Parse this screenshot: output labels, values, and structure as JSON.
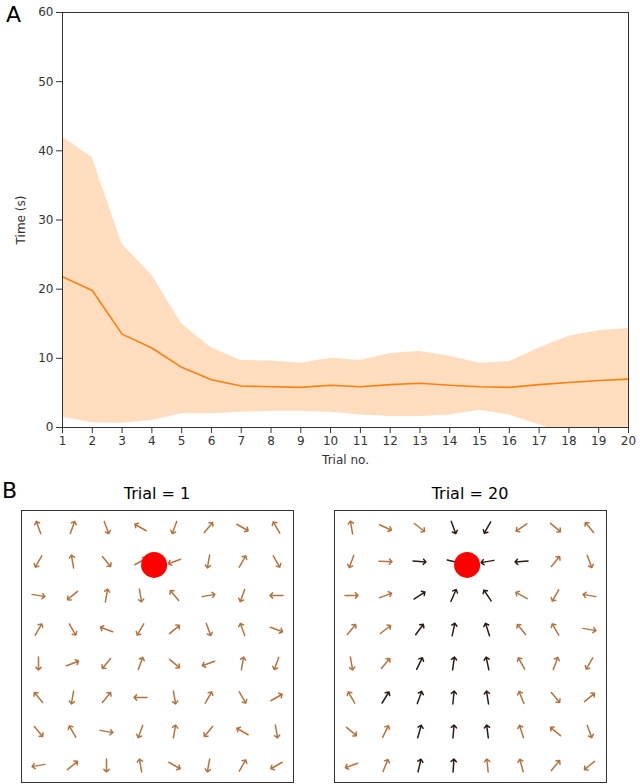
{
  "chart_data": [
    {
      "type": "line",
      "panel": "A",
      "x_label": "Trial no.",
      "y_label": "Time (s)",
      "x": [
        1,
        2,
        3,
        4,
        5,
        6,
        7,
        8,
        9,
        10,
        11,
        12,
        13,
        14,
        15,
        16,
        17,
        18,
        19,
        20
      ],
      "values": [
        21.8,
        19.8,
        13.5,
        11.5,
        8.7,
        6.9,
        6.0,
        5.9,
        5.8,
        6.1,
        5.9,
        6.2,
        6.4,
        6.1,
        5.9,
        5.8,
        6.2,
        6.5,
        6.8,
        7.0
      ],
      "lower": [
        1.5,
        0.7,
        0.6,
        1.0,
        2.0,
        2.0,
        2.2,
        2.3,
        2.3,
        2.2,
        1.8,
        1.6,
        1.6,
        1.8,
        2.5,
        1.8,
        0.4,
        -1.0,
        -0.5,
        -0.2
      ],
      "upper": [
        42,
        39,
        26.5,
        22,
        15,
        11.5,
        9.7,
        9.6,
        9.3,
        10,
        9.7,
        10.7,
        11,
        10.3,
        9.3,
        9.5,
        11.5,
        13.2,
        14,
        14.3
      ],
      "color": "#ff7f0e",
      "band_color": "#ffd1a8",
      "xlim": [
        1,
        20
      ],
      "xticks": [
        1,
        2,
        3,
        4,
        5,
        6,
        7,
        8,
        9,
        10,
        11,
        12,
        13,
        14,
        15,
        16,
        17,
        18,
        19,
        20
      ],
      "ylim": [
        0,
        60
      ],
      "yticks": [
        0,
        10,
        20,
        30,
        40,
        50,
        60
      ],
      "grid": false
    },
    {
      "type": "vector",
      "panel": "B",
      "title": "Trial = 1",
      "tick_labels": false,
      "xlim": [
        0,
        8
      ],
      "ylim": [
        0,
        8
      ],
      "x": [
        0.5,
        1.5,
        2.5,
        3.5,
        4.5,
        5.5,
        6.5,
        7.5,
        0.5,
        1.5,
        2.5,
        3.5,
        4.5,
        5.5,
        6.5,
        7.5,
        0.5,
        1.5,
        2.5,
        3.5,
        4.5,
        5.5,
        6.5,
        7.5,
        0.5,
        1.5,
        2.5,
        3.5,
        4.5,
        5.5,
        6.5,
        7.5,
        0.5,
        1.5,
        2.5,
        3.5,
        4.5,
        5.5,
        6.5,
        7.5,
        0.5,
        1.5,
        2.5,
        3.5,
        4.5,
        5.5,
        6.5,
        7.5,
        0.5,
        1.5,
        2.5,
        3.5,
        4.5,
        5.5,
        6.5,
        7.5,
        0.5,
        1.5,
        2.5,
        3.5,
        4.5,
        5.5,
        6.5,
        7.5
      ],
      "y": [
        7.5,
        7.5,
        7.5,
        7.5,
        7.5,
        7.5,
        7.5,
        7.5,
        6.5,
        6.5,
        6.5,
        6.5,
        6.5,
        6.5,
        6.5,
        6.5,
        5.5,
        5.5,
        5.5,
        5.5,
        5.5,
        5.5,
        5.5,
        5.5,
        4.5,
        4.5,
        4.5,
        4.5,
        4.5,
        4.5,
        4.5,
        4.5,
        3.5,
        3.5,
        3.5,
        3.5,
        3.5,
        3.5,
        3.5,
        3.5,
        2.5,
        2.5,
        2.5,
        2.5,
        2.5,
        2.5,
        2.5,
        2.5,
        1.5,
        1.5,
        1.5,
        1.5,
        1.5,
        1.5,
        1.5,
        1.5,
        0.5,
        0.5,
        0.5,
        0.5,
        0.5,
        0.5,
        0.5,
        0.5
      ],
      "directions": [
        340,
        20,
        160,
        300,
        200,
        40,
        120,
        330,
        210,
        350,
        140,
        60,
        250,
        190,
        30,
        150,
        100,
        230,
        10,
        170,
        320,
        80,
        200,
        270,
        30,
        150,
        290,
        210,
        50,
        160,
        340,
        110,
        180,
        70,
        220,
        20,
        130,
        250,
        10,
        200,
        320,
        190,
        40,
        270,
        170,
        30,
        150,
        60,
        140,
        330,
        100,
        200,
        10,
        220,
        300,
        170,
        260,
        50,
        180,
        350,
        120,
        190,
        30,
        240
      ],
      "color": "#b5733f",
      "goal": {
        "x": 3.9,
        "y": 6.4,
        "color": "#ff0000"
      }
    },
    {
      "type": "vector",
      "panel": "B",
      "title": "Trial = 20",
      "tick_labels": false,
      "xlim": [
        0,
        8
      ],
      "ylim": [
        0,
        8
      ],
      "x": [
        0.5,
        1.5,
        2.5,
        3.5,
        4.5,
        5.5,
        6.5,
        7.5,
        0.5,
        1.5,
        2.5,
        3.5,
        4.5,
        5.5,
        6.5,
        7.5,
        0.5,
        1.5,
        2.5,
        3.5,
        4.5,
        5.5,
        6.5,
        7.5,
        0.5,
        1.5,
        2.5,
        3.5,
        4.5,
        5.5,
        6.5,
        7.5,
        0.5,
        1.5,
        2.5,
        3.5,
        4.5,
        5.5,
        6.5,
        7.5,
        0.5,
        1.5,
        2.5,
        3.5,
        4.5,
        5.5,
        6.5,
        7.5,
        0.5,
        1.5,
        2.5,
        3.5,
        4.5,
        5.5,
        6.5,
        7.5,
        0.5,
        1.5,
        2.5,
        3.5,
        4.5,
        5.5,
        6.5,
        7.5
      ],
      "y": [
        7.5,
        7.5,
        7.5,
        7.5,
        7.5,
        7.5,
        7.5,
        7.5,
        6.5,
        6.5,
        6.5,
        6.5,
        6.5,
        6.5,
        6.5,
        6.5,
        5.5,
        5.5,
        5.5,
        5.5,
        5.5,
        5.5,
        5.5,
        5.5,
        4.5,
        4.5,
        4.5,
        4.5,
        4.5,
        4.5,
        4.5,
        4.5,
        3.5,
        3.5,
        3.5,
        3.5,
        3.5,
        3.5,
        3.5,
        3.5,
        2.5,
        2.5,
        2.5,
        2.5,
        2.5,
        2.5,
        2.5,
        2.5,
        1.5,
        1.5,
        1.5,
        1.5,
        1.5,
        1.5,
        1.5,
        1.5,
        0.5,
        0.5,
        0.5,
        0.5,
        0.5,
        0.5,
        0.5,
        0.5
      ],
      "directions": [
        350,
        115,
        128,
        160,
        209,
        235,
        130,
        320,
        200,
        92,
        94,
        104,
        260,
        266,
        40,
        160,
        90,
        69,
        57,
        24,
        326,
        299,
        210,
        280,
        40,
        52,
        36,
        12,
        342,
        320,
        330,
        100,
        170,
        40,
        26,
        8,
        348,
        331,
        20,
        210,
        330,
        32,
        20,
        6,
        351,
        338,
        140,
        50,
        130,
        26,
        16,
        5,
        353,
        342,
        310,
        160,
        250,
        22,
        13,
        4,
        354,
        345,
        40,
        230
      ],
      "colors": [
        "#b5733f",
        "#b5733f",
        "#b5733f",
        "#2b1d14",
        "#2b1d14",
        "#b5733f",
        "#b5733f",
        "#b5733f",
        "#b5733f",
        "#b5733f",
        "#2b1d14",
        "#2b1d14",
        "#2b1d14",
        "#2b1d14",
        "#b5733f",
        "#b5733f",
        "#b5733f",
        "#b5733f",
        "#2b1d14",
        "#2b1d14",
        "#2b1d14",
        "#b5733f",
        "#b5733f",
        "#b5733f",
        "#b5733f",
        "#b5733f",
        "#2b1d14",
        "#2b1d14",
        "#2b1d14",
        "#b5733f",
        "#b5733f",
        "#b5733f",
        "#b5733f",
        "#b5733f",
        "#2b1d14",
        "#2b1d14",
        "#2b1d14",
        "#b5733f",
        "#b5733f",
        "#b5733f",
        "#b5733f",
        "#2b1d14",
        "#2b1d14",
        "#2b1d14",
        "#2b1d14",
        "#b5733f",
        "#b5733f",
        "#b5733f",
        "#b5733f",
        "#b5733f",
        "#2b1d14",
        "#2b1d14",
        "#2b1d14",
        "#b5733f",
        "#b5733f",
        "#b5733f",
        "#b5733f",
        "#b5733f",
        "#2b1d14",
        "#2b1d14",
        "#b5733f",
        "#b5733f",
        "#b5733f",
        "#b5733f"
      ],
      "goal": {
        "x": 3.9,
        "y": 6.4,
        "color": "#ff0000"
      }
    }
  ]
}
